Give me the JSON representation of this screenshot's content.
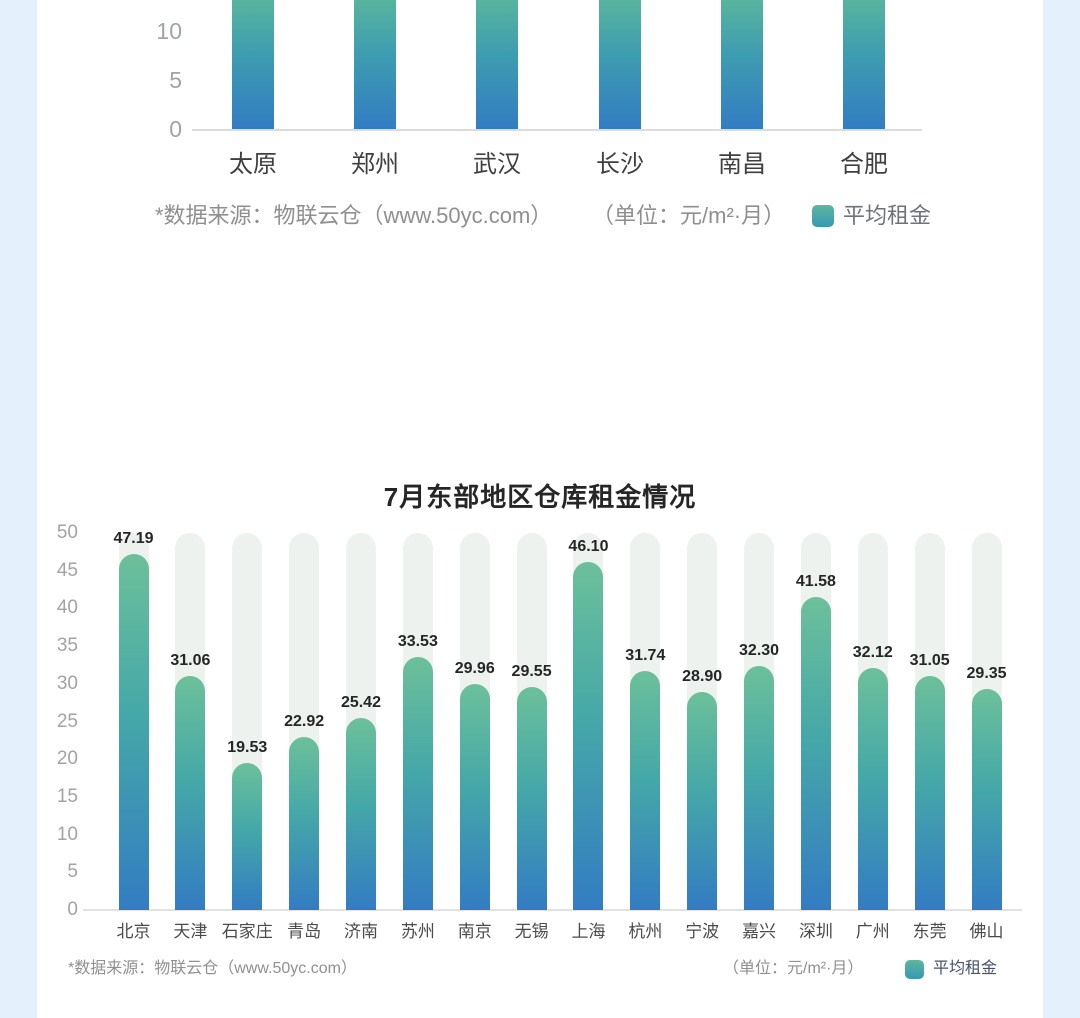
{
  "page": {
    "side_strip_color": "#e4f1fc",
    "background": "#ffffff"
  },
  "colors": {
    "bar_gradient_top": "#6cc09a",
    "bar_gradient_mid": "#45a8a8",
    "bar_gradient_bottom": "#337cc3",
    "track": "#edf2ee",
    "legend_swatch_top": "#5eb79d",
    "legend_swatch_bottom": "#3598b6",
    "axis_line": "#e2e2e2",
    "tick_label": "#a3a3a3",
    "value_label": "#262626"
  },
  "top_chart": {
    "y_ticks": [
      10,
      5,
      0
    ],
    "categories": [
      "太原",
      "郑州",
      "武汉",
      "长沙",
      "南昌",
      "合肥"
    ],
    "footer": {
      "source": "*数据来源：物联云仓（www.50yc.com）",
      "unit": "（单位：元/m²·月）",
      "legend_label": "平均租金"
    }
  },
  "bottom_chart": {
    "title": "7月东部地区仓库租金情况",
    "y_ticks": [
      50,
      45,
      40,
      35,
      30,
      25,
      20,
      15,
      10,
      5,
      0
    ],
    "categories": [
      "北京",
      "天津",
      "石家庄",
      "青岛",
      "济南",
      "苏州",
      "南京",
      "无锡",
      "上海",
      "杭州",
      "宁波",
      "嘉兴",
      "深圳",
      "广州",
      "东莞",
      "佛山"
    ],
    "values": [
      47.19,
      31.06,
      19.53,
      22.92,
      25.42,
      33.53,
      29.96,
      29.55,
      46.1,
      31.74,
      28.9,
      32.3,
      41.58,
      32.12,
      31.05,
      29.35
    ],
    "value_labels": [
      "47.19",
      "31.06",
      "19.53",
      "22.92",
      "25.42",
      "33.53",
      "29.96",
      "29.55",
      "46.10",
      "31.74",
      "28.90",
      "32.30",
      "41.58",
      "32.12",
      "31.05",
      "29.35"
    ],
    "footer": {
      "source": "*数据来源：物联云仓（www.50yc.com）",
      "unit": "（单位：元/m²·月）",
      "legend_label": "平均租金"
    }
  },
  "chart_data": [
    {
      "type": "bar",
      "title": "",
      "categories": [
        "太原",
        "郑州",
        "武汉",
        "长沙",
        "南昌",
        "合肥"
      ],
      "values": [
        null,
        null,
        null,
        null,
        null,
        null
      ],
      "visible_y_ticks": [
        0,
        5,
        10
      ],
      "unit": "元/m²·月",
      "legend": [
        "平均租金"
      ],
      "grid": false,
      "legend_position": "bottom-right"
    },
    {
      "type": "bar",
      "title": "7月东部地区仓库租金情况",
      "categories": [
        "北京",
        "天津",
        "石家庄",
        "青岛",
        "济南",
        "苏州",
        "南京",
        "无锡",
        "上海",
        "杭州",
        "宁波",
        "嘉兴",
        "深圳",
        "广州",
        "东莞",
        "佛山"
      ],
      "values": [
        47.19,
        31.06,
        19.53,
        22.92,
        25.42,
        33.53,
        29.96,
        29.55,
        46.1,
        31.74,
        28.9,
        32.3,
        41.58,
        32.12,
        31.05,
        29.35
      ],
      "xlabel": "",
      "ylabel": "",
      "ylim": [
        0,
        50
      ],
      "y_tick_step": 5,
      "unit": "元/m²·月",
      "legend": [
        "平均租金"
      ],
      "grid": false,
      "legend_position": "bottom-right"
    }
  ]
}
